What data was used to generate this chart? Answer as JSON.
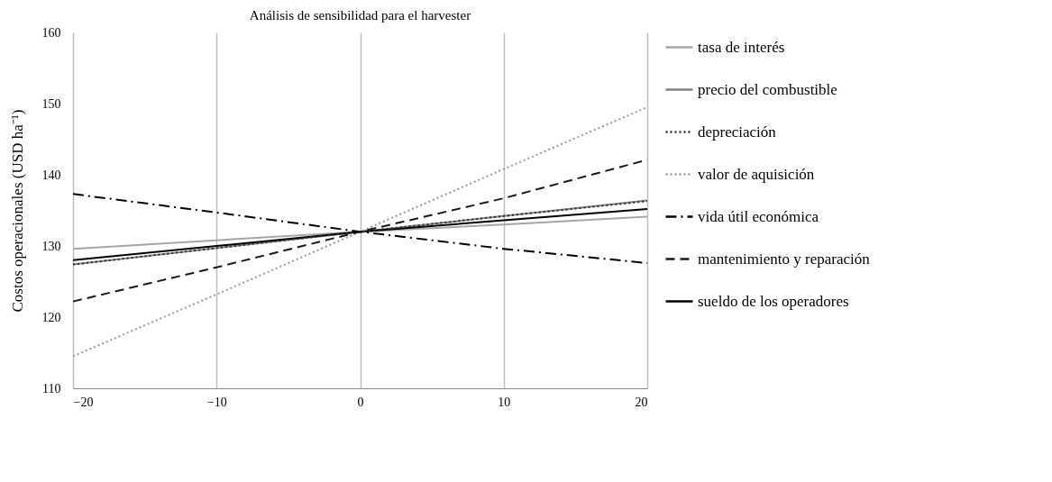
{
  "chart_data": {
    "type": "line",
    "title": "Análisis de sensibilidad para el harvester",
    "ylabel": "Costos operacionales (USD ha⁻¹)",
    "x": [
      -20,
      -10,
      0,
      10,
      20
    ],
    "xlim": [
      -20,
      20
    ],
    "xticks": [
      -20,
      -10,
      0,
      10,
      20
    ],
    "ylim": [
      110,
      160
    ],
    "yticks": [
      110,
      120,
      130,
      140,
      150,
      160
    ],
    "grid": "x",
    "legend": "right",
    "marker": "none",
    "series": [
      {
        "name": "tasa de interés",
        "color": "#a6a6a6",
        "line_style": "solid",
        "values": [
          129.6,
          130.8,
          132,
          133,
          134.1
        ]
      },
      {
        "name": "precio del combustible",
        "color": "#808080",
        "line_style": "solid",
        "values": [
          127.4,
          129.7,
          132,
          134.2,
          136.4
        ]
      },
      {
        "name": "depreciación",
        "color": "#303030",
        "line_style": "dotted",
        "values": [
          127.4,
          129.7,
          132,
          134.2,
          136.3
        ]
      },
      {
        "name": "valor de aquisición",
        "color": "#999999",
        "line_style": "dotted",
        "values": [
          114.5,
          123.2,
          132,
          140.8,
          149.5
        ]
      },
      {
        "name": "vida útil económica",
        "color": "#000000",
        "line_style": "dashdot",
        "values": [
          137.3,
          134.7,
          132,
          129.6,
          127.6
        ]
      },
      {
        "name": "mantenimiento y reparación",
        "color": "#1a1a1a",
        "line_style": "dashed",
        "values": [
          122.2,
          127,
          132,
          136.7,
          142.1
        ]
      },
      {
        "name": "sueldo de los operadores",
        "color": "#000000",
        "line_style": "solid",
        "values": [
          128,
          130,
          132,
          133.6,
          135.2
        ]
      }
    ]
  }
}
